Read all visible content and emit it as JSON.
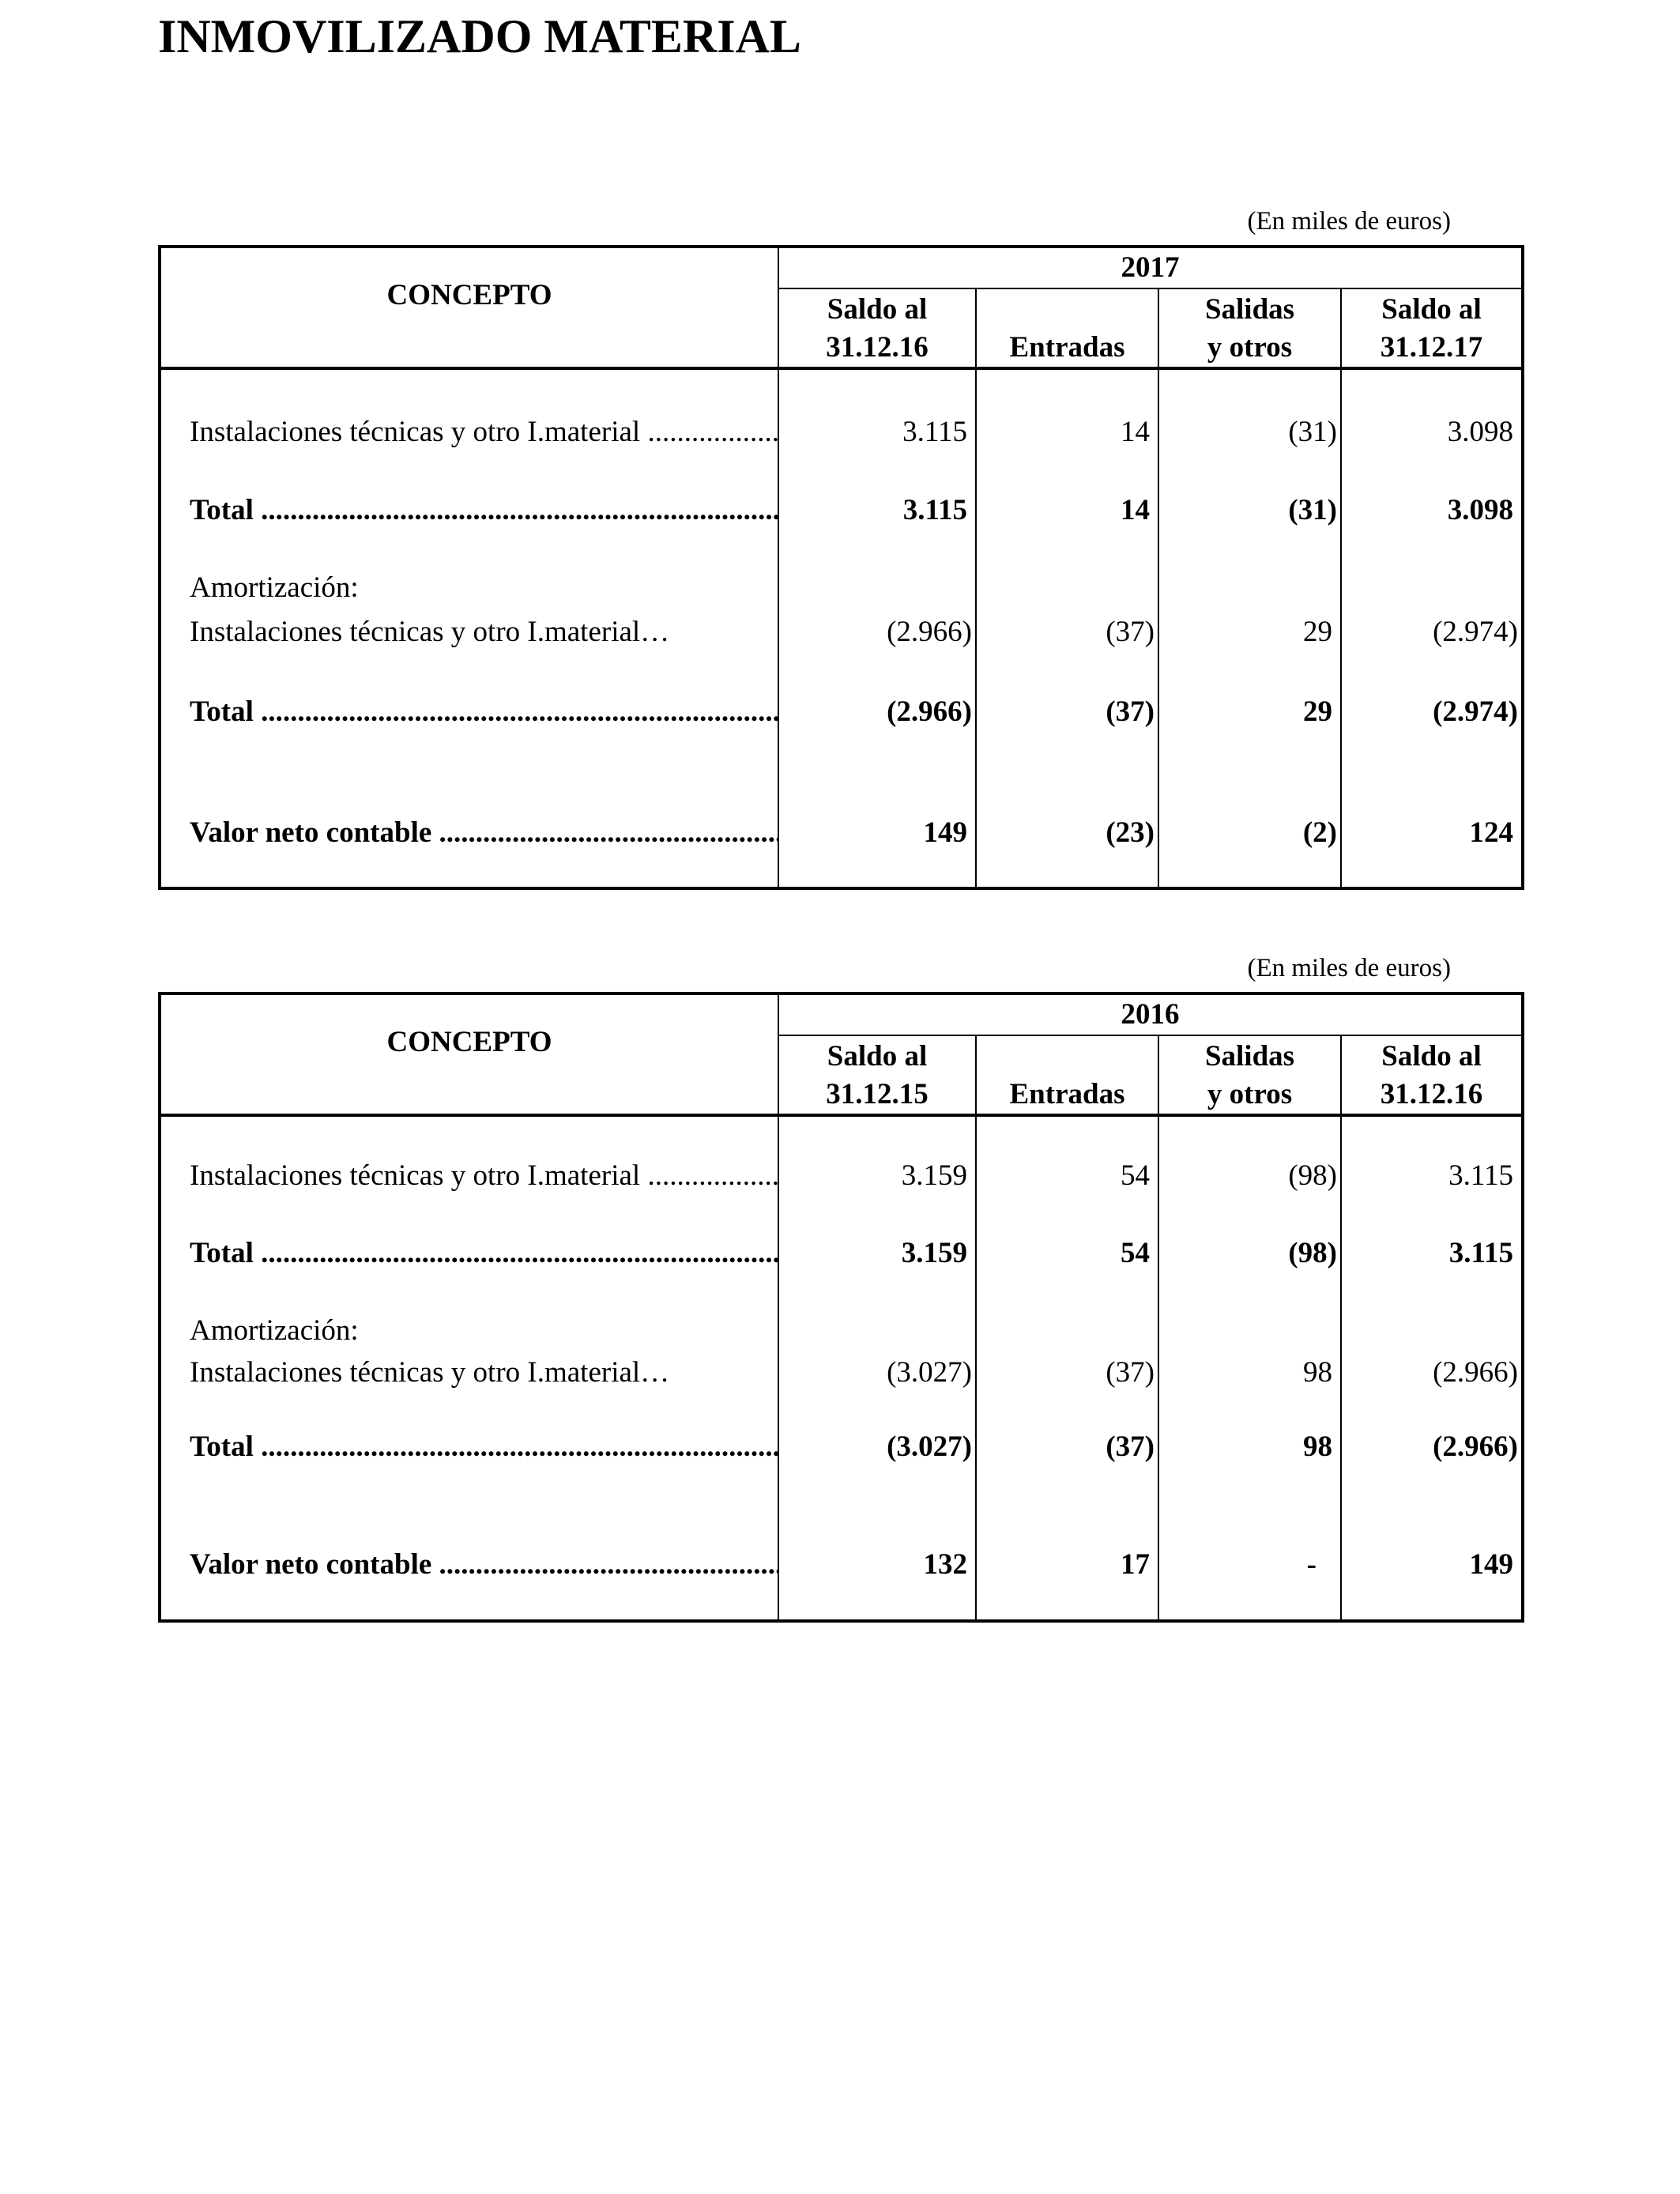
{
  "title": "INMOVILIZADO MATERIAL",
  "tables": [
    {
      "unit_note": "(En miles de euros)",
      "concept_header": "CONCEPTO",
      "year": "2017",
      "columns": [
        [
          "Saldo al",
          "31.12.16"
        ],
        [
          "",
          "Entradas"
        ],
        [
          "Salidas",
          "y otros"
        ],
        [
          "Saldo al",
          "31.12.17"
        ]
      ],
      "rows": [
        {
          "label": "Instalaciones técnicas y otro I.material",
          "bold": false,
          "dots": true,
          "values": [
            "3.115",
            "14",
            "(31)",
            "3.098"
          ]
        },
        {
          "label": "Total",
          "bold": true,
          "dots": true,
          "values": [
            "3.115",
            "14",
            "(31)",
            "3.098"
          ]
        },
        {
          "label": "Amortización:",
          "bold": false,
          "dots": false,
          "values": [
            "",
            "",
            "",
            ""
          ]
        },
        {
          "label": "Instalaciones técnicas y otro I.material…",
          "bold": false,
          "dots": false,
          "values": [
            "(2.966)",
            "(37)",
            "29",
            "(2.974)"
          ]
        },
        {
          "label": "Total",
          "bold": true,
          "dots": true,
          "values": [
            "(2.966)",
            "(37)",
            "29",
            "(2.974)"
          ]
        },
        {
          "label": "Valor neto contable",
          "bold": true,
          "dots": true,
          "values": [
            "149",
            "(23)",
            "(2)",
            "124"
          ]
        }
      ]
    },
    {
      "unit_note": "(En miles de euros)",
      "concept_header": "CONCEPTO",
      "year": "2016",
      "columns": [
        [
          "Saldo al",
          "31.12.15"
        ],
        [
          "",
          "Entradas"
        ],
        [
          "Salidas",
          "y otros"
        ],
        [
          "Saldo al",
          "31.12.16"
        ]
      ],
      "rows": [
        {
          "label": "Instalaciones técnicas y otro I.material",
          "bold": false,
          "dots": true,
          "values": [
            "3.159",
            "54",
            "(98)",
            "3.115"
          ]
        },
        {
          "label": "Total",
          "bold": true,
          "dots": true,
          "values": [
            "3.159",
            "54",
            "(98)",
            "3.115"
          ]
        },
        {
          "label": "Amortización:",
          "bold": false,
          "dots": false,
          "values": [
            "",
            "",
            "",
            ""
          ]
        },
        {
          "label": "Instalaciones técnicas y otro I.material…",
          "bold": false,
          "dots": false,
          "values": [
            "(3.027)",
            "(37)",
            "98",
            "(2.966)"
          ]
        },
        {
          "label": "Total",
          "bold": true,
          "dots": true,
          "values": [
            "(3.027)",
            "(37)",
            "98",
            "(2.966)"
          ]
        },
        {
          "label": "Valor neto contable",
          "bold": true,
          "dots": true,
          "values": [
            "132",
            "17",
            "-",
            "149"
          ]
        }
      ]
    }
  ]
}
